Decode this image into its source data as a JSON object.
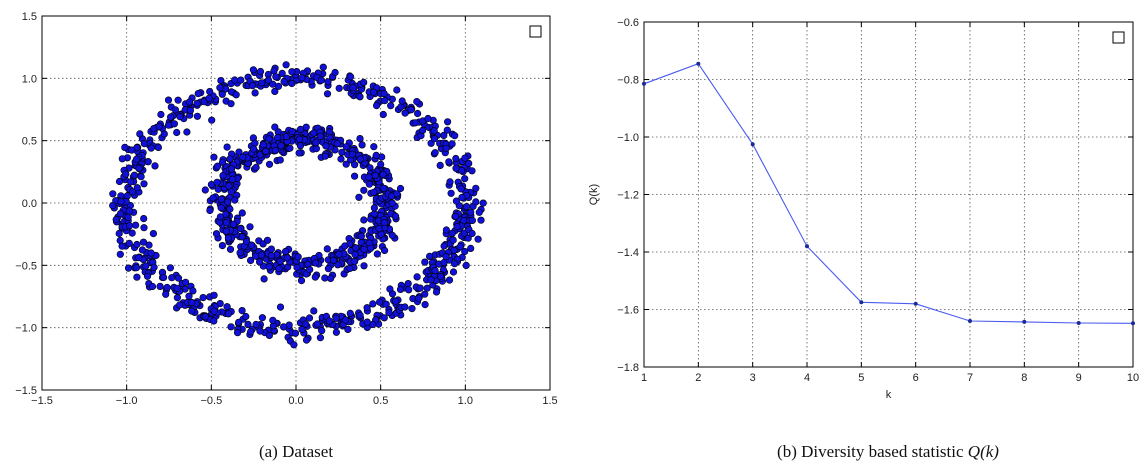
{
  "chart_data": [
    {
      "type": "scatter",
      "caption": "(a) Dataset",
      "xlim": [
        -1.5,
        1.5
      ],
      "ylim": [
        -1.5,
        1.5
      ],
      "xticks": [
        "−1.5",
        "−1.0",
        "−0.5",
        "0.0",
        "0.5",
        "1.0",
        "1.5"
      ],
      "yticks": [
        "−1.5",
        "−1.0",
        "−0.5",
        "0.0",
        "0.5",
        "1.0",
        "1.5"
      ],
      "grid": true,
      "legend": "top-right",
      "marker_color": "#1010d8",
      "series": [
        {
          "description": "outer ring",
          "center": [
            0.0,
            0.0
          ],
          "radius_x": 1.0,
          "radius_y": 1.0,
          "noise": 0.05,
          "n": 700
        },
        {
          "description": "inner ring",
          "center": [
            0.05,
            0.0
          ],
          "radius_x": 0.48,
          "radius_y": 0.5,
          "noise": 0.05,
          "n": 650
        }
      ]
    },
    {
      "type": "line",
      "caption": "(b) Diversity based statistic ",
      "caption_math": "Q(k)",
      "xlabel": "k",
      "ylabel": "Q(k)",
      "xlim": [
        1,
        10
      ],
      "ylim": [
        -1.8,
        -0.6
      ],
      "xticks": [
        "1",
        "2",
        "3",
        "4",
        "5",
        "6",
        "7",
        "8",
        "9",
        "10"
      ],
      "yticks": [
        "−1.8",
        "−1.6",
        "−1.4",
        "−1.2",
        "−1.0",
        "−0.8",
        "−0.6"
      ],
      "grid": true,
      "legend": "top-right",
      "line_color": "#4a5cf0",
      "x": [
        1,
        2,
        3,
        4,
        5,
        6,
        7,
        8,
        9,
        10
      ],
      "y": [
        -0.815,
        -0.745,
        -1.025,
        -1.38,
        -1.575,
        -1.58,
        -1.64,
        -1.643,
        -1.647,
        -1.648
      ]
    }
  ]
}
